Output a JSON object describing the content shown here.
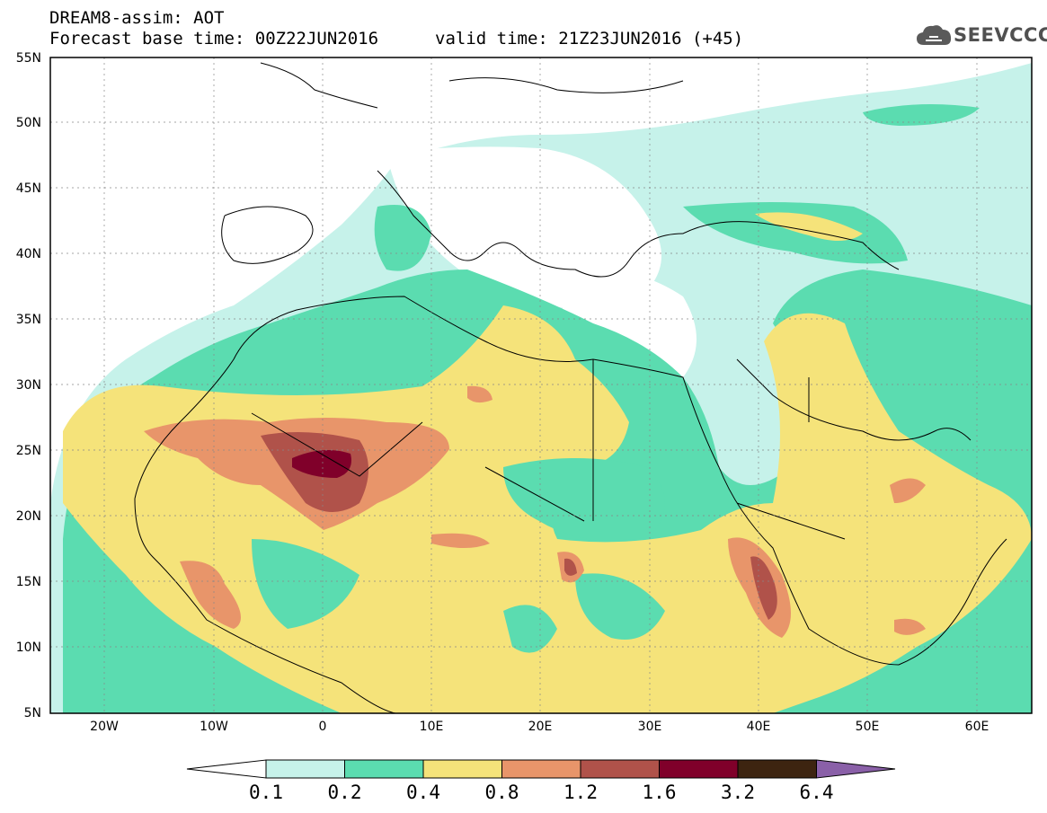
{
  "header": {
    "line1": "DREAM8-assim: AOT",
    "line2": "Forecast base time: 00Z22JUN2016",
    "valid": "valid time: 21Z23JUN2016 (+45)"
  },
  "logo": {
    "text": "SEEVCCC",
    "icon": "cloud-icon"
  },
  "axes": {
    "lat_labels": [
      "55N",
      "50N",
      "45N",
      "40N",
      "35N",
      "30N",
      "25N",
      "20N",
      "15N",
      "10N",
      "5N"
    ],
    "lon_labels": [
      "20W",
      "10W",
      "0",
      "10E",
      "20E",
      "30E",
      "40E",
      "50E",
      "60E"
    ],
    "lon_range": [
      -25,
      65
    ],
    "lat_range": [
      5,
      55
    ]
  },
  "colorbar": {
    "labels": [
      "0.1",
      "0.2",
      "0.4",
      "0.8",
      "1.2",
      "1.6",
      "3.2",
      "6.4"
    ],
    "colors": [
      "#ffffff",
      "#c6f2ea",
      "#5bdcb0",
      "#f5e37a",
      "#e8956a",
      "#b0524a",
      "#80002a",
      "#3d2410",
      "#8a60a8"
    ]
  },
  "palette": {
    "c1": "#c6f2ea",
    "c2": "#5bdcb0",
    "c3": "#f5e37a",
    "c4": "#e8956a",
    "c5": "#b0524a",
    "c6": "#80002a"
  }
}
